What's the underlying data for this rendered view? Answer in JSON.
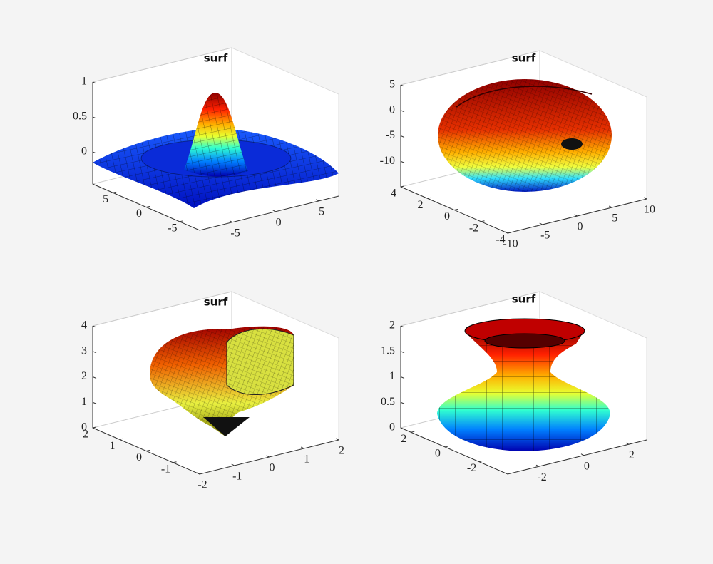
{
  "chart_data": [
    {
      "type": "surface",
      "title": "surf",
      "xlim": [
        -8.8,
        7.3
      ],
      "ylim": [
        -8,
        8
      ],
      "zlim": [
        -0.46,
        1
      ],
      "xticks": [
        -5,
        0,
        5
      ],
      "yticks": [
        -5,
        0,
        5
      ],
      "zticks": [
        0,
        0.5,
        1
      ]
    },
    {
      "type": "surface",
      "title": "surf",
      "xlim": [
        -10,
        10
      ],
      "ylim": [
        -4,
        4
      ],
      "zlim": [
        -15,
        5
      ],
      "xticks": [
        -10,
        -5,
        0,
        5,
        10
      ],
      "yticks": [
        -4,
        -2,
        0,
        2,
        4
      ],
      "zticks": [
        -10,
        -5,
        0,
        5
      ]
    },
    {
      "type": "surface",
      "title": "surf",
      "xlim": [
        -2,
        2
      ],
      "ylim": [
        -2,
        2
      ],
      "zlim": [
        0,
        4
      ],
      "xticks": [
        -2,
        -1,
        0,
        1,
        2
      ],
      "yticks": [
        -1,
        0,
        1,
        2
      ],
      "zticks": [
        0,
        1,
        2,
        3,
        4
      ]
    },
    {
      "type": "surface",
      "title": "surf",
      "xlim": [
        -3.4,
        2.8
      ],
      "ylim": [
        -3.7,
        2.6
      ],
      "zlim": [
        0,
        2
      ],
      "xticks": [
        -2,
        0,
        2
      ],
      "yticks": [
        -2,
        0,
        2
      ],
      "zticks": [
        0,
        0.5,
        1,
        1.5,
        2
      ]
    }
  ]
}
